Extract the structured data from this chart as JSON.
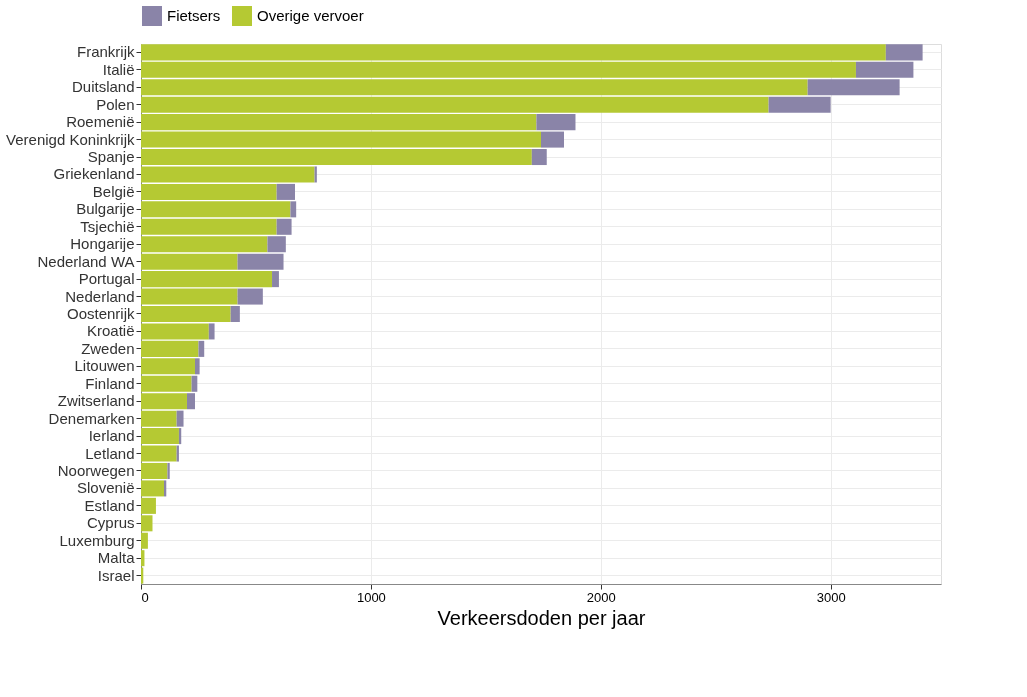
{
  "chart_data": {
    "type": "bar",
    "orientation": "horizontal",
    "stacked": true,
    "categories": [
      "Frankrijk",
      "Italië",
      "Duitsland",
      "Polen",
      "Roemenië",
      "Verenigd Koninkrijk",
      "Spanje",
      "Griekenland",
      "België",
      "Bulgarije",
      "Tsjechië",
      "Hongarije",
      "Nederland WA",
      "Portugal",
      "Nederland",
      "Oostenrijk",
      "Kroatië",
      "Zweden",
      "Litouwen",
      "Finland",
      "Zwitserland",
      "Denemarken",
      "Ierland",
      "Letland",
      "Noorwegen",
      "Slovenië",
      "Estland",
      "Cyprus",
      "Luxemburg",
      "Malta",
      "Israel"
    ],
    "series": [
      {
        "name": "Overige vervoer",
        "color": "#b5c933",
        "values": [
          3240,
          3110,
          2900,
          2730,
          1720,
          1740,
          1700,
          755,
          590,
          650,
          590,
          550,
          420,
          570,
          420,
          390,
          295,
          250,
          235,
          220,
          200,
          155,
          165,
          155,
          115,
          100,
          65,
          50,
          30,
          15,
          10
        ]
      },
      {
        "name": "Fietsers",
        "color": "#8a84a8",
        "values": [
          160,
          250,
          400,
          270,
          170,
          100,
          65,
          10,
          80,
          25,
          65,
          80,
          200,
          30,
          110,
          40,
          25,
          25,
          20,
          25,
          35,
          30,
          10,
          10,
          10,
          10,
          null,
          null,
          null,
          null,
          null
        ]
      }
    ],
    "xlabel": "Verkeersdoden per jaar",
    "xlim": [
      0,
      3480
    ],
    "xticks": [
      0,
      1000,
      2000,
      3000
    ],
    "legend": "top",
    "grid": true
  }
}
